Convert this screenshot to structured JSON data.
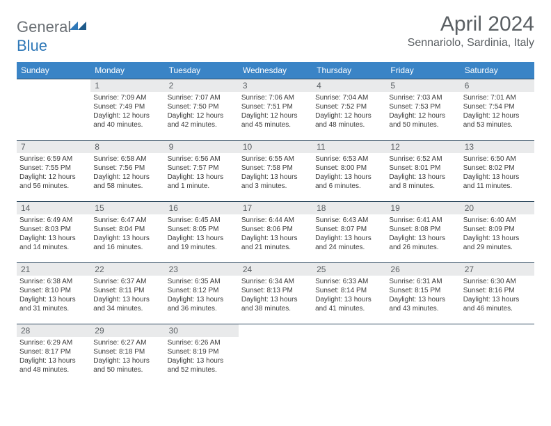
{
  "logo": {
    "text_gray": "General",
    "text_blue": "Blue"
  },
  "title": "April 2024",
  "location": "Sennariolo, Sardinia, Italy",
  "colors": {
    "header_bg": "#3a84c6",
    "header_fg": "#ffffff",
    "daynum_bg": "#e9eaeb",
    "daynum_fg": "#5a5f63",
    "border": "#2f4a60",
    "title_fg": "#5a5f63",
    "logo_gray": "#6b7075",
    "logo_blue": "#2f78b8",
    "page_bg": "#ffffff",
    "text_fg": "#3a3a3a"
  },
  "weekdays": [
    "Sunday",
    "Monday",
    "Tuesday",
    "Wednesday",
    "Thursday",
    "Friday",
    "Saturday"
  ],
  "weeks": [
    [
      {
        "day": "",
        "sunrise": "",
        "sunset": "",
        "daylight": ""
      },
      {
        "day": "1",
        "sunrise": "Sunrise: 7:09 AM",
        "sunset": "Sunset: 7:49 PM",
        "daylight": "Daylight: 12 hours and 40 minutes."
      },
      {
        "day": "2",
        "sunrise": "Sunrise: 7:07 AM",
        "sunset": "Sunset: 7:50 PM",
        "daylight": "Daylight: 12 hours and 42 minutes."
      },
      {
        "day": "3",
        "sunrise": "Sunrise: 7:06 AM",
        "sunset": "Sunset: 7:51 PM",
        "daylight": "Daylight: 12 hours and 45 minutes."
      },
      {
        "day": "4",
        "sunrise": "Sunrise: 7:04 AM",
        "sunset": "Sunset: 7:52 PM",
        "daylight": "Daylight: 12 hours and 48 minutes."
      },
      {
        "day": "5",
        "sunrise": "Sunrise: 7:03 AM",
        "sunset": "Sunset: 7:53 PM",
        "daylight": "Daylight: 12 hours and 50 minutes."
      },
      {
        "day": "6",
        "sunrise": "Sunrise: 7:01 AM",
        "sunset": "Sunset: 7:54 PM",
        "daylight": "Daylight: 12 hours and 53 minutes."
      }
    ],
    [
      {
        "day": "7",
        "sunrise": "Sunrise: 6:59 AM",
        "sunset": "Sunset: 7:55 PM",
        "daylight": "Daylight: 12 hours and 56 minutes."
      },
      {
        "day": "8",
        "sunrise": "Sunrise: 6:58 AM",
        "sunset": "Sunset: 7:56 PM",
        "daylight": "Daylight: 12 hours and 58 minutes."
      },
      {
        "day": "9",
        "sunrise": "Sunrise: 6:56 AM",
        "sunset": "Sunset: 7:57 PM",
        "daylight": "Daylight: 13 hours and 1 minute."
      },
      {
        "day": "10",
        "sunrise": "Sunrise: 6:55 AM",
        "sunset": "Sunset: 7:58 PM",
        "daylight": "Daylight: 13 hours and 3 minutes."
      },
      {
        "day": "11",
        "sunrise": "Sunrise: 6:53 AM",
        "sunset": "Sunset: 8:00 PM",
        "daylight": "Daylight: 13 hours and 6 minutes."
      },
      {
        "day": "12",
        "sunrise": "Sunrise: 6:52 AM",
        "sunset": "Sunset: 8:01 PM",
        "daylight": "Daylight: 13 hours and 8 minutes."
      },
      {
        "day": "13",
        "sunrise": "Sunrise: 6:50 AM",
        "sunset": "Sunset: 8:02 PM",
        "daylight": "Daylight: 13 hours and 11 minutes."
      }
    ],
    [
      {
        "day": "14",
        "sunrise": "Sunrise: 6:49 AM",
        "sunset": "Sunset: 8:03 PM",
        "daylight": "Daylight: 13 hours and 14 minutes."
      },
      {
        "day": "15",
        "sunrise": "Sunrise: 6:47 AM",
        "sunset": "Sunset: 8:04 PM",
        "daylight": "Daylight: 13 hours and 16 minutes."
      },
      {
        "day": "16",
        "sunrise": "Sunrise: 6:45 AM",
        "sunset": "Sunset: 8:05 PM",
        "daylight": "Daylight: 13 hours and 19 minutes."
      },
      {
        "day": "17",
        "sunrise": "Sunrise: 6:44 AM",
        "sunset": "Sunset: 8:06 PM",
        "daylight": "Daylight: 13 hours and 21 minutes."
      },
      {
        "day": "18",
        "sunrise": "Sunrise: 6:43 AM",
        "sunset": "Sunset: 8:07 PM",
        "daylight": "Daylight: 13 hours and 24 minutes."
      },
      {
        "day": "19",
        "sunrise": "Sunrise: 6:41 AM",
        "sunset": "Sunset: 8:08 PM",
        "daylight": "Daylight: 13 hours and 26 minutes."
      },
      {
        "day": "20",
        "sunrise": "Sunrise: 6:40 AM",
        "sunset": "Sunset: 8:09 PM",
        "daylight": "Daylight: 13 hours and 29 minutes."
      }
    ],
    [
      {
        "day": "21",
        "sunrise": "Sunrise: 6:38 AM",
        "sunset": "Sunset: 8:10 PM",
        "daylight": "Daylight: 13 hours and 31 minutes."
      },
      {
        "day": "22",
        "sunrise": "Sunrise: 6:37 AM",
        "sunset": "Sunset: 8:11 PM",
        "daylight": "Daylight: 13 hours and 34 minutes."
      },
      {
        "day": "23",
        "sunrise": "Sunrise: 6:35 AM",
        "sunset": "Sunset: 8:12 PM",
        "daylight": "Daylight: 13 hours and 36 minutes."
      },
      {
        "day": "24",
        "sunrise": "Sunrise: 6:34 AM",
        "sunset": "Sunset: 8:13 PM",
        "daylight": "Daylight: 13 hours and 38 minutes."
      },
      {
        "day": "25",
        "sunrise": "Sunrise: 6:33 AM",
        "sunset": "Sunset: 8:14 PM",
        "daylight": "Daylight: 13 hours and 41 minutes."
      },
      {
        "day": "26",
        "sunrise": "Sunrise: 6:31 AM",
        "sunset": "Sunset: 8:15 PM",
        "daylight": "Daylight: 13 hours and 43 minutes."
      },
      {
        "day": "27",
        "sunrise": "Sunrise: 6:30 AM",
        "sunset": "Sunset: 8:16 PM",
        "daylight": "Daylight: 13 hours and 46 minutes."
      }
    ],
    [
      {
        "day": "28",
        "sunrise": "Sunrise: 6:29 AM",
        "sunset": "Sunset: 8:17 PM",
        "daylight": "Daylight: 13 hours and 48 minutes."
      },
      {
        "day": "29",
        "sunrise": "Sunrise: 6:27 AM",
        "sunset": "Sunset: 8:18 PM",
        "daylight": "Daylight: 13 hours and 50 minutes."
      },
      {
        "day": "30",
        "sunrise": "Sunrise: 6:26 AM",
        "sunset": "Sunset: 8:19 PM",
        "daylight": "Daylight: 13 hours and 52 minutes."
      },
      {
        "day": "",
        "sunrise": "",
        "sunset": "",
        "daylight": ""
      },
      {
        "day": "",
        "sunrise": "",
        "sunset": "",
        "daylight": ""
      },
      {
        "day": "",
        "sunrise": "",
        "sunset": "",
        "daylight": ""
      },
      {
        "day": "",
        "sunrise": "",
        "sunset": "",
        "daylight": ""
      }
    ]
  ]
}
